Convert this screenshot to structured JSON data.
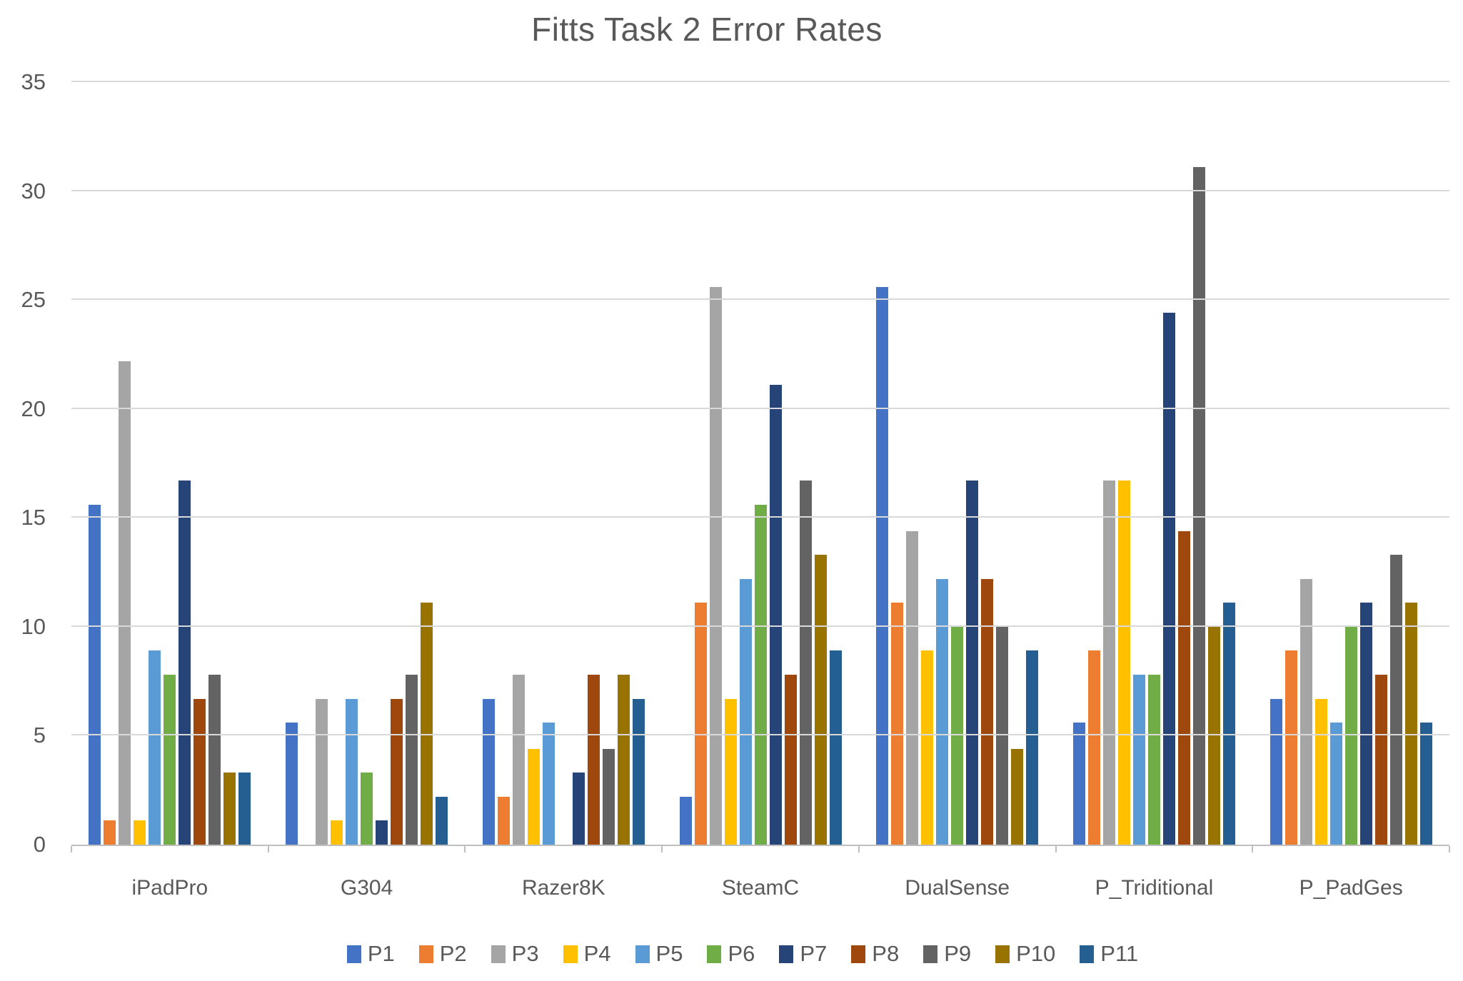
{
  "chart_data": {
    "type": "bar",
    "title": "Fitts Task 2 Error Rates",
    "categories": [
      "iPadPro",
      "G304",
      "Razer8K",
      "SteamC",
      "DualSense",
      "P_Triditional",
      "P_PadGes"
    ],
    "series": [
      {
        "name": "P1",
        "color": "#4472C4",
        "values": [
          15.6,
          5.6,
          6.7,
          2.2,
          25.6,
          5.6,
          6.7
        ]
      },
      {
        "name": "P2",
        "color": "#ED7D31",
        "values": [
          1.1,
          0,
          2.2,
          11.1,
          11.1,
          8.9,
          8.9
        ]
      },
      {
        "name": "P3",
        "color": "#A5A5A5",
        "values": [
          22.2,
          6.7,
          7.8,
          25.6,
          14.4,
          16.7,
          12.2
        ]
      },
      {
        "name": "P4",
        "color": "#FFC000",
        "values": [
          1.1,
          1.1,
          4.4,
          6.7,
          8.9,
          16.7,
          6.7
        ]
      },
      {
        "name": "P5",
        "color": "#5B9BD5",
        "values": [
          8.9,
          6.7,
          5.6,
          12.2,
          12.2,
          7.8,
          5.6
        ]
      },
      {
        "name": "P6",
        "color": "#70AD47",
        "values": [
          7.8,
          3.3,
          0,
          15.6,
          10,
          7.8,
          10
        ]
      },
      {
        "name": "P7",
        "color": "#264478",
        "values": [
          16.7,
          1.1,
          3.3,
          21.1,
          16.7,
          24.4,
          11.1
        ]
      },
      {
        "name": "P8",
        "color": "#9E480E",
        "values": [
          6.7,
          6.7,
          7.8,
          7.8,
          12.2,
          14.4,
          7.8
        ]
      },
      {
        "name": "P9",
        "color": "#636363",
        "values": [
          7.8,
          7.8,
          4.4,
          16.7,
          10,
          31.1,
          13.3
        ]
      },
      {
        "name": "P10",
        "color": "#997300",
        "values": [
          3.3,
          11.1,
          7.8,
          13.3,
          4.4,
          10,
          11.1
        ]
      },
      {
        "name": "P11",
        "color": "#255E91",
        "values": [
          3.3,
          2.2,
          6.7,
          8.9,
          8.9,
          11.1,
          5.6
        ]
      }
    ],
    "y_ticks": [
      0,
      5,
      10,
      15,
      20,
      25,
      30,
      35
    ],
    "ylim": [
      0,
      35
    ],
    "grid": true,
    "legend_position": "bottom"
  },
  "styles": {
    "text_color": "#595959",
    "gridline_color": "#D9D9D9",
    "axis_color": "#BFBFBF",
    "background": "#FFFFFF"
  }
}
